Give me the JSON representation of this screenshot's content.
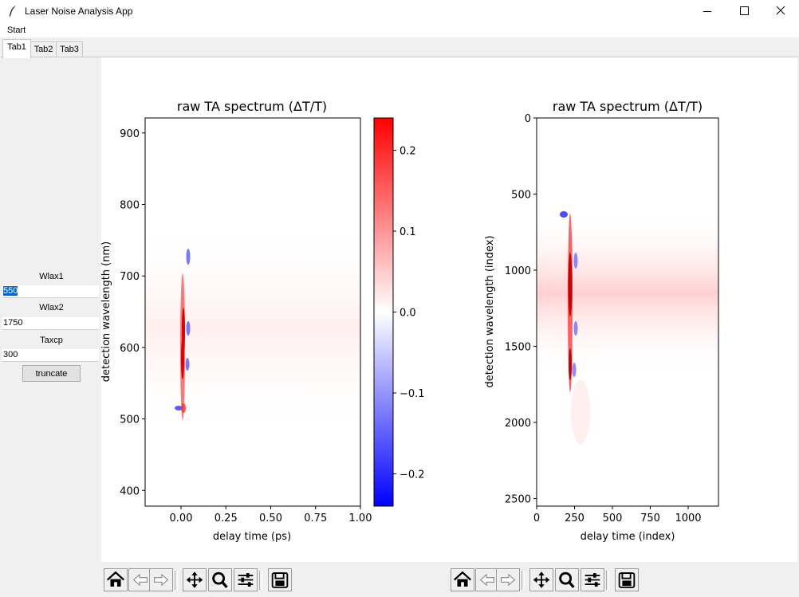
{
  "window": {
    "title": "Laser Noise Analysis App",
    "controls": [
      "minimize-icon",
      "maximize-icon",
      "close-icon"
    ]
  },
  "menu": {
    "start_label": "Start"
  },
  "tabs": [
    {
      "label": "Tab1",
      "active": true
    },
    {
      "label": "Tab2"
    },
    {
      "label": "Tab3"
    }
  ],
  "sidebar": {
    "fields": [
      {
        "label": "Wlax1",
        "value": "550",
        "selected": true
      },
      {
        "label": "Wlax2",
        "value": "1750"
      },
      {
        "label": "Taxcp",
        "value": "300"
      }
    ],
    "truncate_label": "truncate"
  },
  "plot_left": {
    "title": "raw TA spectrum (ΔT/T)",
    "xlabel": "delay time (ps)",
    "ylabel": "detection wavelength (nm)",
    "xticks": [
      "0.00",
      "0.25",
      "0.50",
      "0.75",
      "1.00"
    ],
    "yticks": [
      "400",
      "500",
      "600",
      "700",
      "800",
      "900"
    ]
  },
  "colorbar": {
    "ticks": [
      "0.2",
      "0.1",
      "0.0",
      "−0.1",
      "−0.2"
    ],
    "colors": {
      "max": "#ff0000",
      "zero": "#ffffff",
      "min": "#0000ff"
    }
  },
  "plot_right": {
    "title": "raw TA spectrum (ΔT/T)",
    "xlabel": "delay time (index)",
    "ylabel": "detection wavelength (index)",
    "xticks": [
      "0",
      "250",
      "500",
      "750",
      "1000"
    ],
    "yticks": [
      "0",
      "500",
      "1000",
      "1500",
      "2000",
      "2500"
    ]
  },
  "chart_data": {
    "type": "heatmap",
    "colormap": "bwr",
    "colorbar_range": [
      -0.24,
      0.24
    ],
    "left": {
      "xlim": [
        -0.2,
        1.0
      ],
      "ylim": [
        378,
        921
      ]
    },
    "right": {
      "xlim": [
        0,
        1200
      ],
      "ylim": [
        2550,
        0
      ]
    }
  },
  "toolbars": [
    {
      "icons": [
        "home-icon",
        "back-arrow-icon",
        "forward-arrow-icon",
        "pan-icon",
        "zoom-icon",
        "configure-subplots-icon",
        "save-icon"
      ]
    },
    {
      "icons": [
        "home-icon",
        "back-arrow-icon",
        "forward-arrow-icon",
        "pan-icon",
        "zoom-icon",
        "configure-subplots-icon",
        "save-icon"
      ]
    }
  ]
}
